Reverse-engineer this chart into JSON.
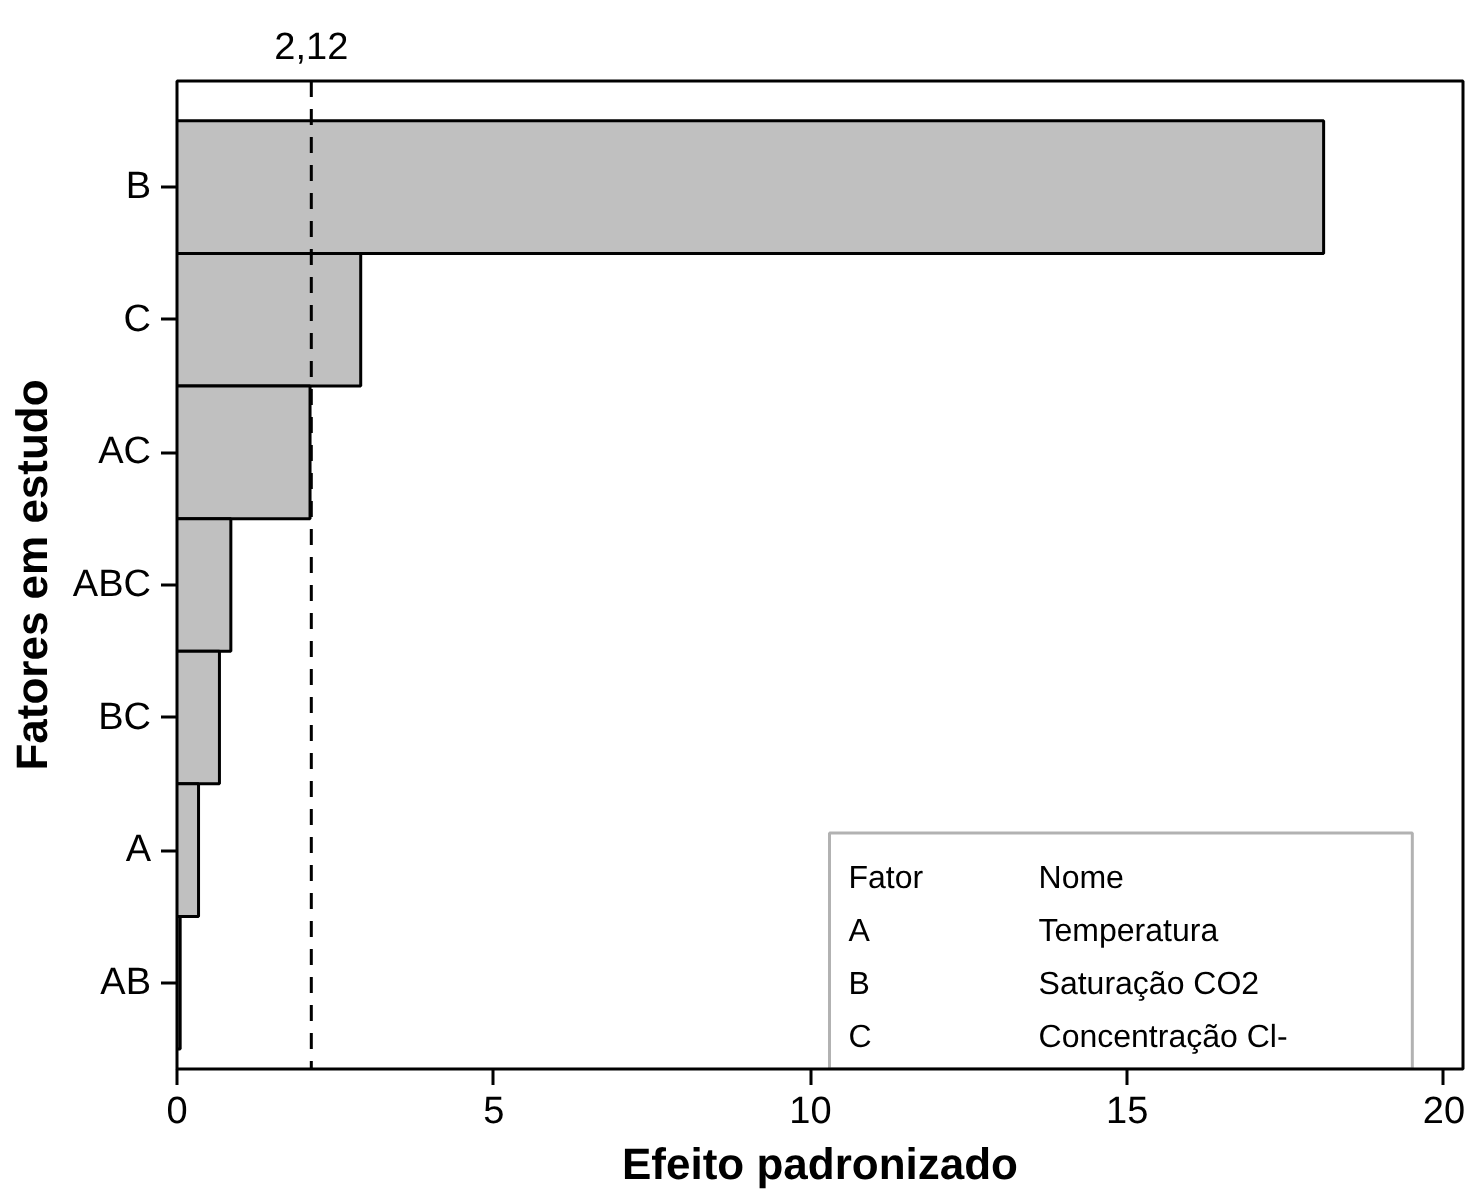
{
  "chart_data": {
    "type": "bar",
    "orientation": "horizontal",
    "xlabel": "Efeito padronizado",
    "ylabel": "Fatores em estudo",
    "categories": [
      "B",
      "C",
      "AC",
      "ABC",
      "BC",
      "A",
      "AB"
    ],
    "values": [
      18.1,
      2.9,
      2.1,
      0.85,
      0.67,
      0.34,
      0.05
    ],
    "color": "#c0c0c0",
    "xlim": [
      0,
      20.3
    ],
    "xticks": [
      0,
      5,
      10,
      15,
      20
    ],
    "ref_lines": [
      {
        "axis": "x",
        "value": 2.12,
        "label": "2,12",
        "line_style": "dashed"
      }
    ],
    "annotations": [
      "Fator",
      "Nome",
      "A",
      "Temperatura",
      "B",
      "Saturação CO2",
      "C",
      "Concentração Cl-"
    ],
    "grid": false
  }
}
